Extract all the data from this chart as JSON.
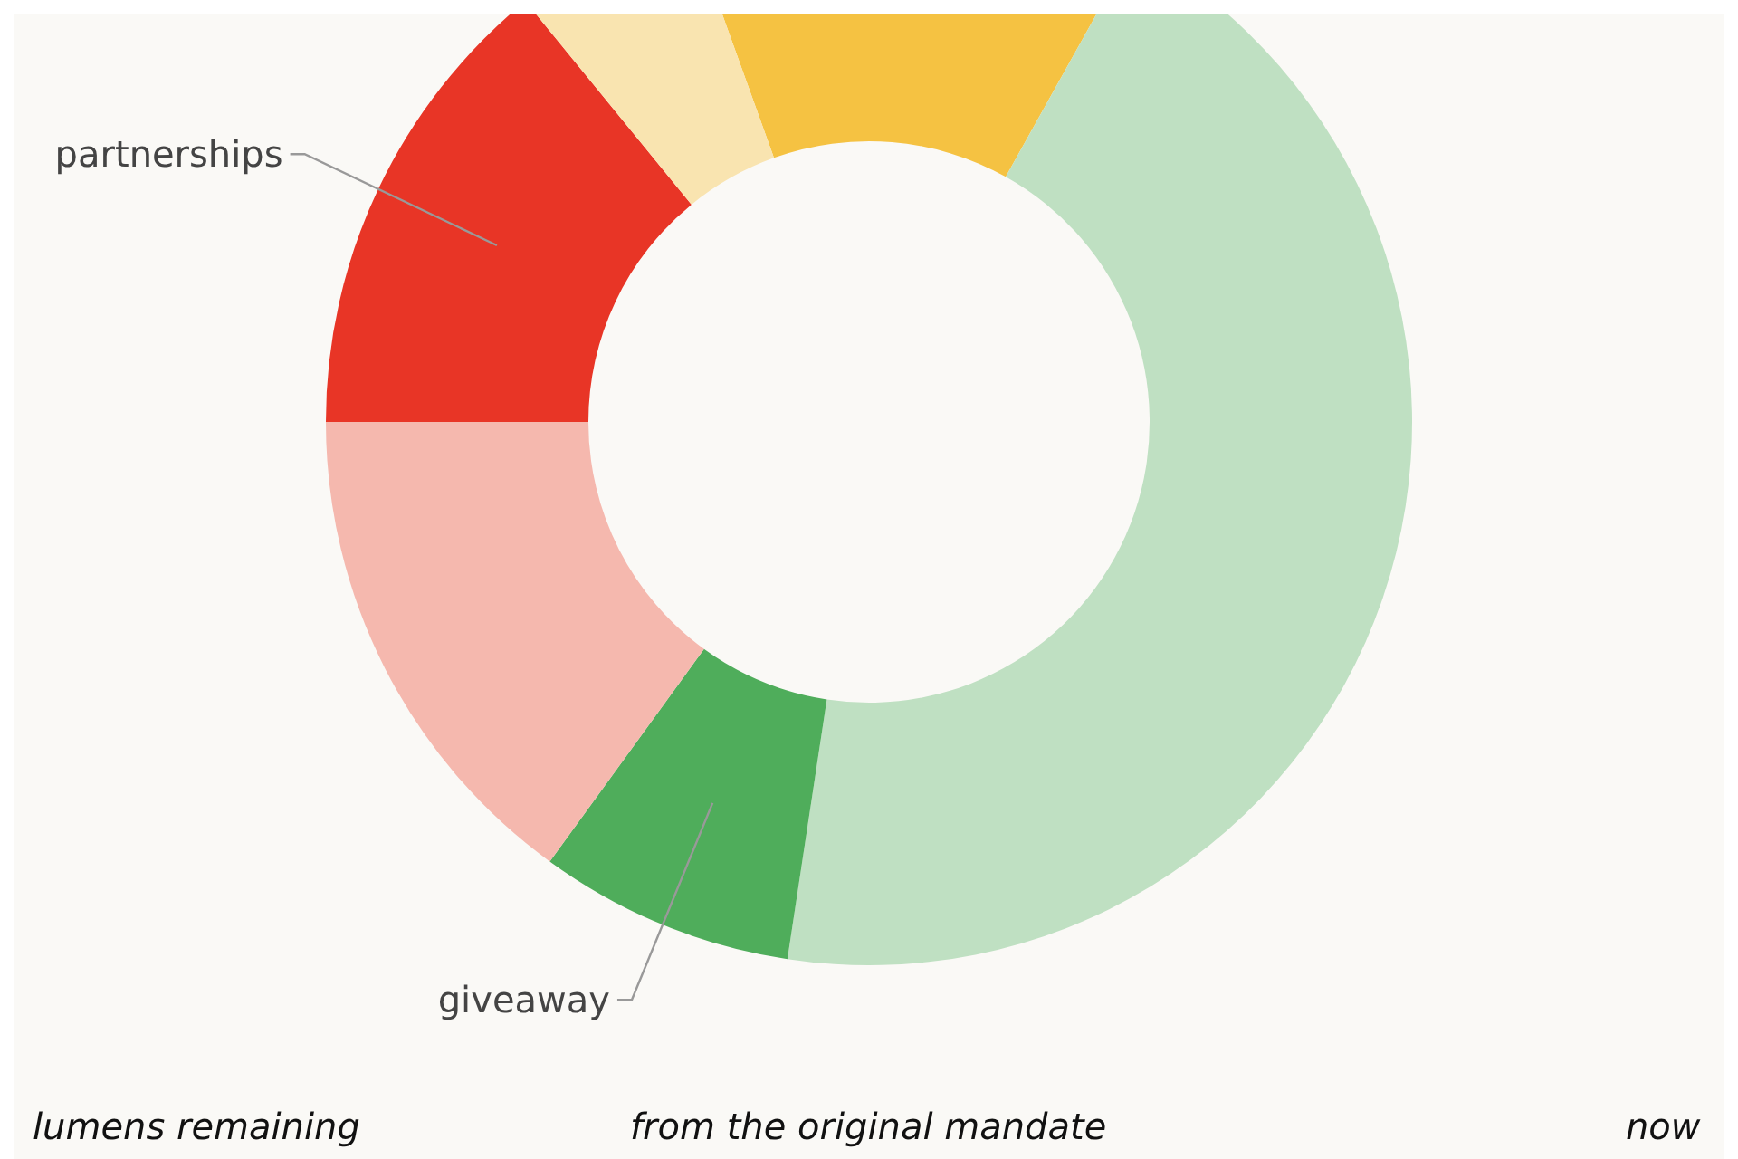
{
  "chart_data": {
    "type": "donut",
    "categories": [
      null,
      null,
      "giveaway",
      null,
      "partnerships",
      null
    ],
    "values": [
      13.6,
      44.3,
      7.6,
      15,
      14.1,
      5.4
    ],
    "colors": [
      "#f5c242",
      "#bfe0c2",
      "#4fad5b",
      "#f5b8ae",
      "#e83526",
      "#f9e4b0"
    ],
    "annotations": [
      "lumens remaining",
      "from the original mandate",
      "now"
    ]
  }
}
